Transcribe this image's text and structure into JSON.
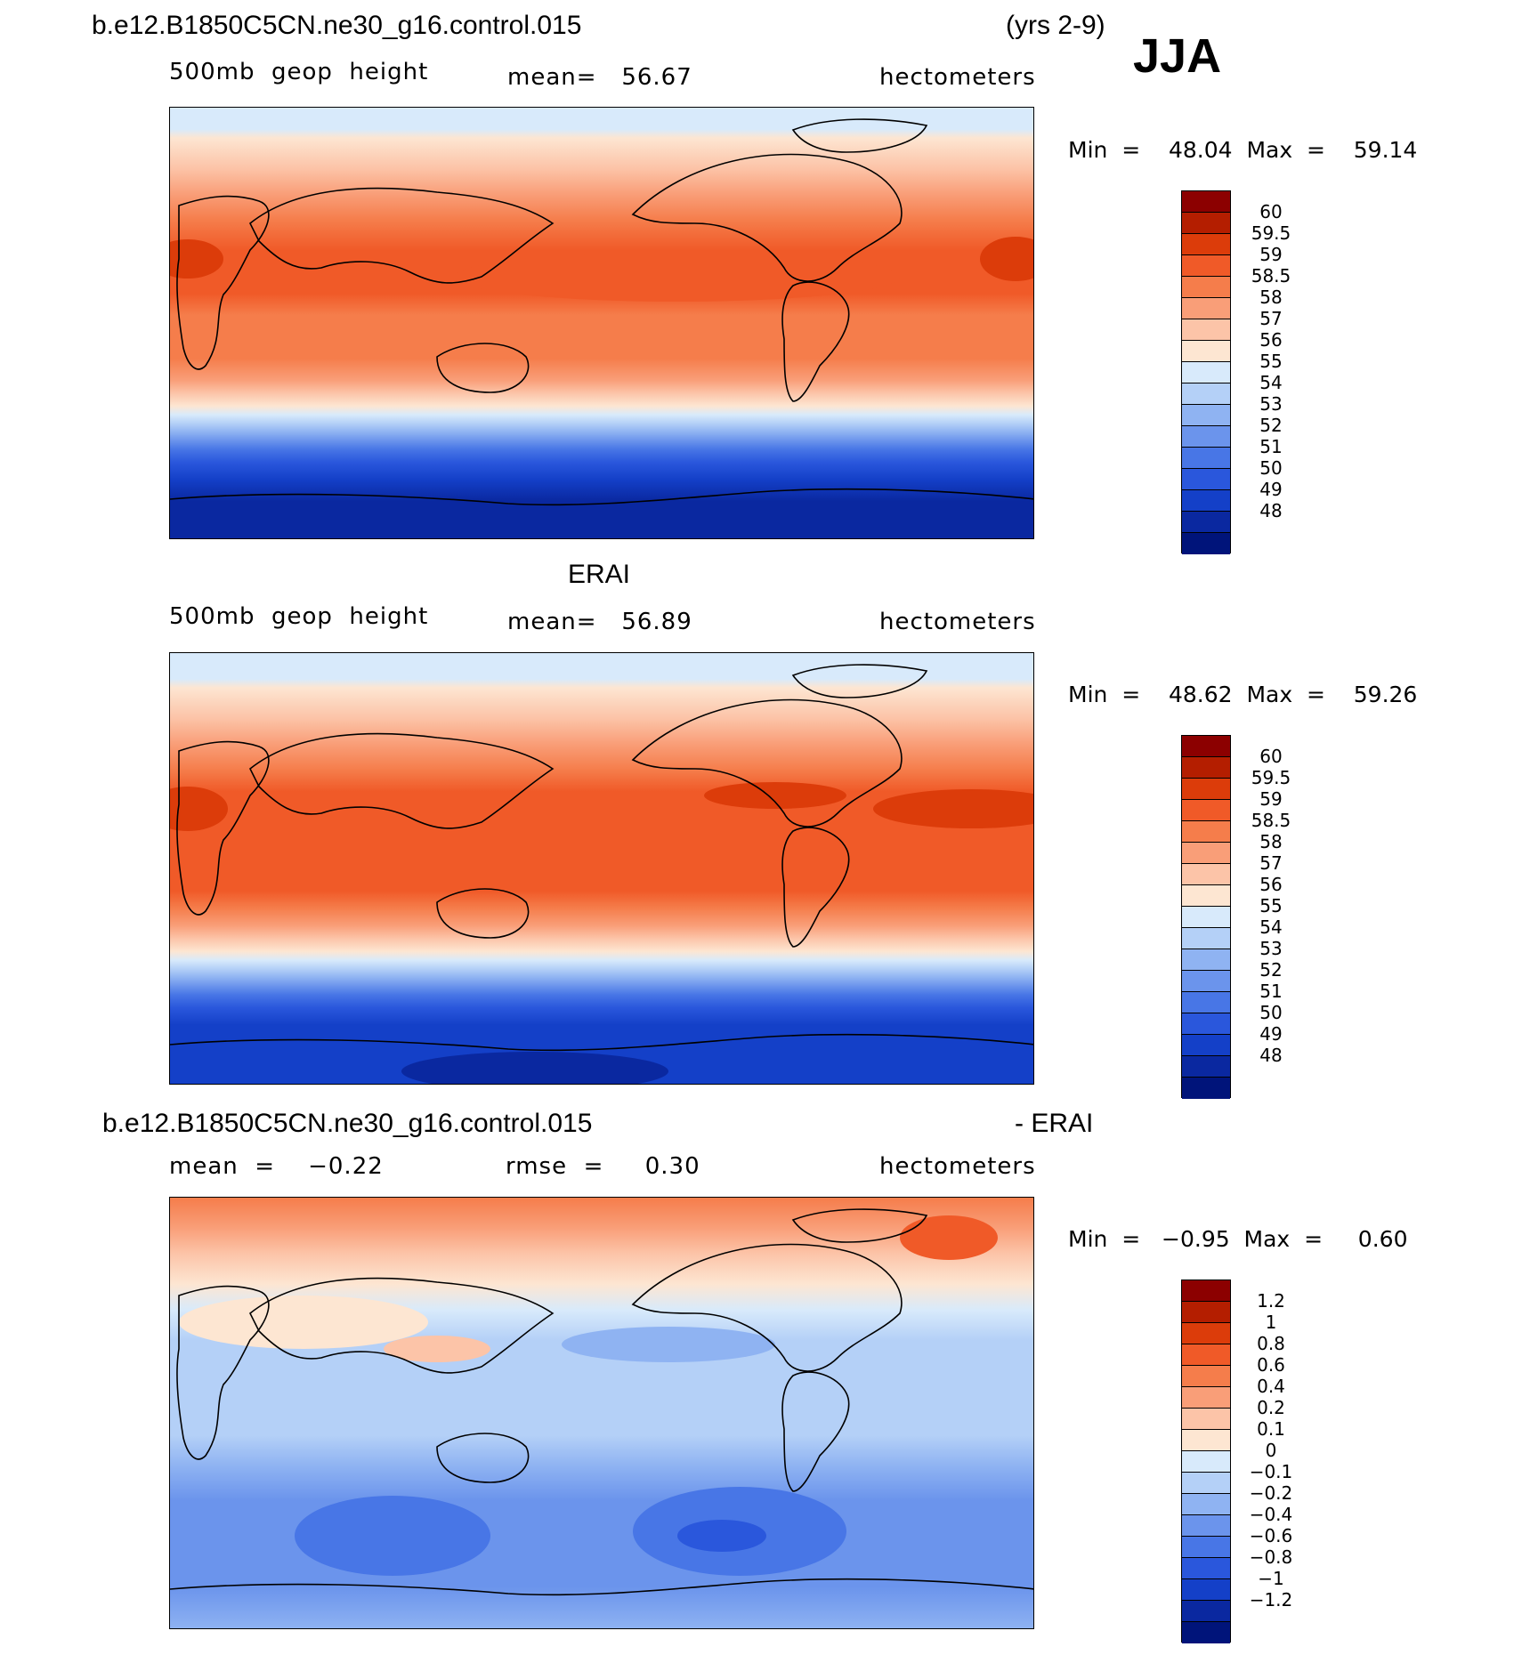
{
  "header": {
    "case_name": "b.e12.B1850C5CN.ne30_g16.control.015",
    "years": "(yrs 2-9)",
    "season": "JJA"
  },
  "panels": [
    {
      "id": "model",
      "title": "",
      "variable": "500mb  geop  height",
      "mean_text": "mean=   56.67",
      "units": "hectometers",
      "minmax": "Min  =    48.04  Max  =    59.14",
      "colorbar": {
        "labels": [
          "60",
          "59.5",
          "59",
          "58.5",
          "58",
          "57",
          "56",
          "55",
          "54",
          "53",
          "52",
          "51",
          "50",
          "49",
          "48"
        ],
        "colors": [
          "#8c0000",
          "#b41e00",
          "#dc3c0a",
          "#f05a28",
          "#f57d4b",
          "#f99e78",
          "#fcc4a8",
          "#fde6d2",
          "#d8eafb",
          "#b4d0f7",
          "#8fb3f2",
          "#6b94ec",
          "#4876e6",
          "#2a57dc",
          "#1440c8",
          "#0a28a0",
          "#00147a"
        ]
      }
    },
    {
      "id": "obs",
      "title": "ERAI",
      "variable": "500mb  geop  height",
      "mean_text": "mean=   56.89",
      "units": "hectometers",
      "minmax": "Min  =    48.62  Max  =    59.26",
      "colorbar": {
        "labels": [
          "60",
          "59.5",
          "59",
          "58.5",
          "58",
          "57",
          "56",
          "55",
          "54",
          "53",
          "52",
          "51",
          "50",
          "49",
          "48"
        ],
        "colors": [
          "#8c0000",
          "#b41e00",
          "#dc3c0a",
          "#f05a28",
          "#f57d4b",
          "#f99e78",
          "#fcc4a8",
          "#fde6d2",
          "#d8eafb",
          "#b4d0f7",
          "#8fb3f2",
          "#6b94ec",
          "#4876e6",
          "#2a57dc",
          "#1440c8",
          "#0a28a0",
          "#00147a"
        ]
      }
    },
    {
      "id": "diff",
      "title_left": "b.e12.B1850C5CN.ne30_g16.control.015",
      "title_right": "- ERAI",
      "mean_text": "mean  =    −0.22",
      "rmse_text": "rmse  =     0.30",
      "units": "hectometers",
      "minmax": "Min  =   −0.95  Max  =     0.60",
      "colorbar": {
        "labels": [
          "1.2",
          "1",
          "0.8",
          "0.6",
          "0.4",
          "0.2",
          "0.1",
          "0",
          "−0.1",
          "−0.2",
          "−0.4",
          "−0.6",
          "−0.8",
          "−1",
          "−1.2"
        ],
        "colors": [
          "#8c0000",
          "#b41e00",
          "#dc3c0a",
          "#f05a28",
          "#f57d4b",
          "#f99e78",
          "#fcc4a8",
          "#fde6d2",
          "#d8eafb",
          "#b4d0f7",
          "#8fb3f2",
          "#6b94ec",
          "#4876e6",
          "#2a57dc",
          "#1440c8",
          "#0a28a0",
          "#00147a"
        ]
      }
    }
  ]
}
